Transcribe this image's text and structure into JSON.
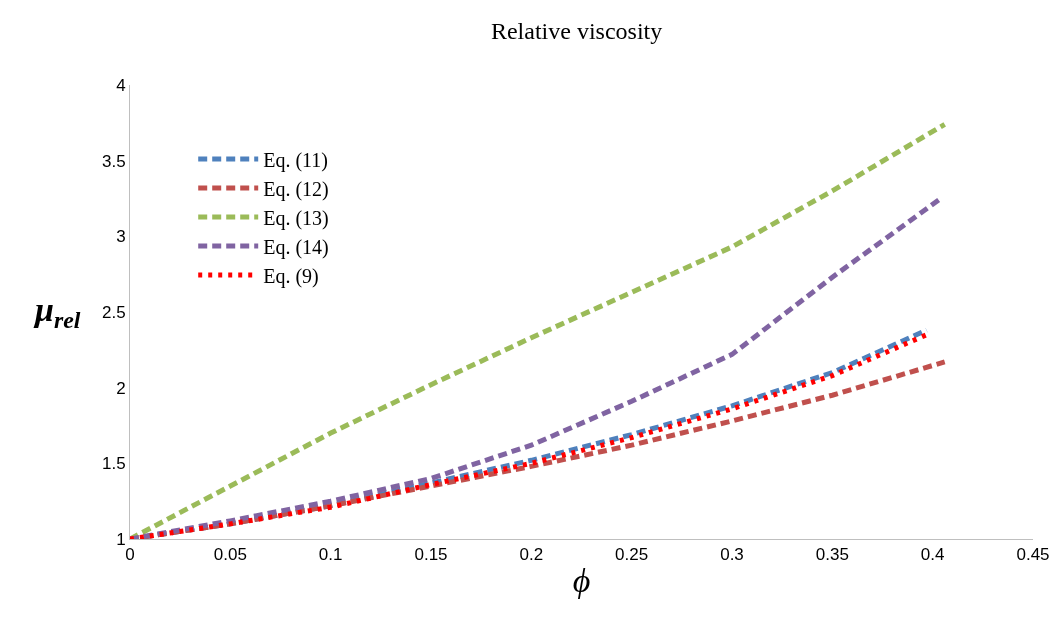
{
  "chart_data": {
    "type": "line",
    "title": "Relative viscosity",
    "xlabel": "ϕ",
    "ylabel": "μ$_{rel}$",
    "xlim": [
      0,
      0.45
    ],
    "xticks": [
      0,
      0.05,
      0.1,
      0.15,
      0.2,
      0.25,
      0.3,
      0.35,
      0.4,
      0.45
    ],
    "ylim": [
      1,
      4
    ],
    "yticks": [
      1,
      1.5,
      2,
      2.5,
      3,
      3.5,
      4
    ],
    "grid": false,
    "legend": "top left",
    "marker": "none",
    "series": [
      {
        "name": "Eq. (11)",
        "color": "#4f81bd",
        "line_style": "dashed",
        "x": [
          0,
          0.05,
          0.1,
          0.15,
          0.2,
          0.25,
          0.3,
          0.35,
          0.397
        ],
        "values": [
          1,
          1.1,
          1.22,
          1.37,
          1.52,
          1.69,
          1.88,
          2.1,
          2.38
        ]
      },
      {
        "name": "Eq. (12)",
        "color": "#c0504d",
        "line_style": "dashed",
        "x": [
          0,
          0.05,
          0.1,
          0.15,
          0.2,
          0.25,
          0.3,
          0.35,
          0.406
        ],
        "values": [
          1,
          1.1,
          1.22,
          1.35,
          1.48,
          1.62,
          1.78,
          1.95,
          2.17
        ]
      },
      {
        "name": "Eq. (13)",
        "color": "#9bbb59",
        "line_style": "dashed",
        "x": [
          0,
          0.05,
          0.1,
          0.15,
          0.2,
          0.25,
          0.3,
          0.35,
          0.406
        ],
        "values": [
          1,
          1.35,
          1.7,
          2.02,
          2.33,
          2.63,
          2.93,
          3.3,
          3.74
        ]
      },
      {
        "name": "Eq. (14)",
        "color": "#8064a2",
        "line_style": "dashed",
        "x": [
          0,
          0.05,
          0.1,
          0.15,
          0.2,
          0.25,
          0.3,
          0.35,
          0.403
        ],
        "values": [
          1,
          1.12,
          1.25,
          1.4,
          1.62,
          1.91,
          2.22,
          2.73,
          3.24
        ]
      },
      {
        "name": "Eq. (9)",
        "color": "#ff0000",
        "line_style": "dotted",
        "x": [
          0,
          0.05,
          0.1,
          0.15,
          0.2,
          0.25,
          0.3,
          0.35,
          0.397
        ],
        "values": [
          1,
          1.1,
          1.21,
          1.36,
          1.5,
          1.67,
          1.86,
          2.08,
          2.35
        ]
      }
    ]
  }
}
